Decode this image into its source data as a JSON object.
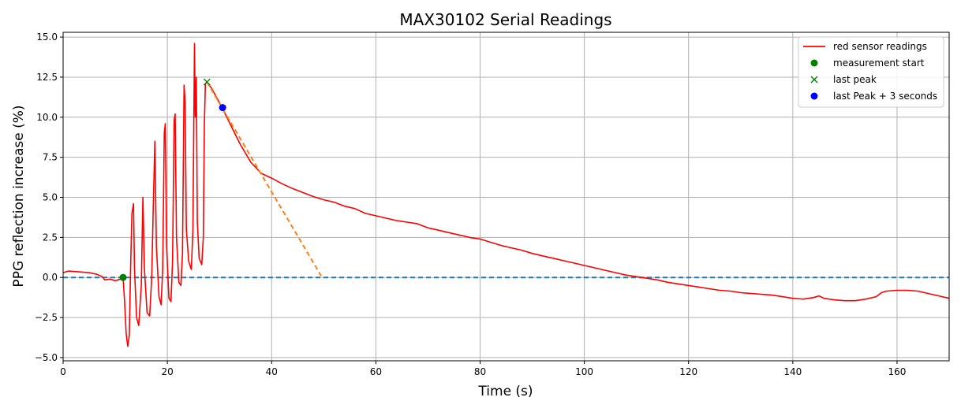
{
  "chart_data": {
    "type": "line",
    "title": "MAX30102 Serial Readings",
    "xlabel": "Time (s)",
    "ylabel": "PPG reflection increase (%)",
    "xlim": [
      0,
      170
    ],
    "ylim": [
      -5.2,
      15.3
    ],
    "xticks": [
      0,
      20,
      40,
      60,
      80,
      100,
      120,
      140,
      160
    ],
    "xtick_labels": [
      "0",
      "20",
      "40",
      "60",
      "80",
      "100",
      "120",
      "140",
      "160"
    ],
    "yticks": [
      -5.0,
      -2.5,
      0.0,
      2.5,
      5.0,
      7.5,
      10.0,
      12.5,
      15.0
    ],
    "ytick_labels": [
      "−5.0",
      "−2.5",
      "0.0",
      "2.5",
      "5.0",
      "7.5",
      "10.0",
      "12.5",
      "15.0"
    ],
    "grid": true,
    "legend_position": "top-right",
    "colors": {
      "red": "#ff0000",
      "green": "#008000",
      "blue": "#0000ff",
      "orange": "#ff7f0e",
      "baseline": "#1f77b4"
    },
    "series": [
      {
        "name": "red sensor readings",
        "style": "line",
        "color": "#ff0000",
        "points": [
          [
            0,
            0.3
          ],
          [
            1,
            0.4
          ],
          [
            3,
            0.35
          ],
          [
            5,
            0.3
          ],
          [
            6.5,
            0.2
          ],
          [
            7.5,
            0.05
          ],
          [
            8,
            -0.15
          ],
          [
            9,
            -0.1
          ],
          [
            10,
            -0.2
          ],
          [
            11,
            -0.1
          ],
          [
            11.5,
            0.0
          ],
          [
            11.8,
            -1.5
          ],
          [
            12.1,
            -3.5
          ],
          [
            12.4,
            -4.3
          ],
          [
            12.7,
            -3.6
          ],
          [
            12.95,
            0.5
          ],
          [
            13.2,
            4.0
          ],
          [
            13.5,
            4.6
          ],
          [
            13.7,
            0.5
          ],
          [
            14.1,
            -2.5
          ],
          [
            14.5,
            -3.0
          ],
          [
            15.0,
            -0.5
          ],
          [
            15.3,
            5.0
          ],
          [
            15.6,
            0.5
          ],
          [
            16.1,
            -2.2
          ],
          [
            16.6,
            -2.4
          ],
          [
            17.0,
            0.0
          ],
          [
            17.3,
            4.5
          ],
          [
            17.6,
            8.5
          ],
          [
            17.9,
            2.0
          ],
          [
            18.4,
            -1.2
          ],
          [
            18.8,
            -1.7
          ],
          [
            19.1,
            0.5
          ],
          [
            19.4,
            9.0
          ],
          [
            19.6,
            9.6
          ],
          [
            19.85,
            2.0
          ],
          [
            20.3,
            -1.3
          ],
          [
            20.7,
            -1.5
          ],
          [
            21.0,
            1.0
          ],
          [
            21.3,
            9.8
          ],
          [
            21.5,
            10.2
          ],
          [
            21.75,
            2.5
          ],
          [
            22.2,
            -0.3
          ],
          [
            22.6,
            -0.5
          ],
          [
            22.9,
            1.5
          ],
          [
            23.2,
            12.0
          ],
          [
            23.4,
            11.0
          ],
          [
            23.65,
            3.0
          ],
          [
            24.1,
            1.0
          ],
          [
            24.6,
            0.5
          ],
          [
            24.9,
            3.0
          ],
          [
            25.2,
            14.6
          ],
          [
            25.35,
            10.0
          ],
          [
            25.55,
            12.5
          ],
          [
            25.75,
            3.5
          ],
          [
            26.1,
            1.2
          ],
          [
            26.6,
            0.8
          ],
          [
            26.9,
            2.5
          ],
          [
            27.1,
            9.5
          ],
          [
            27.3,
            12.1
          ],
          [
            27.6,
            12.2
          ],
          [
            28.5,
            11.8
          ],
          [
            30.5,
            10.6
          ],
          [
            32,
            9.6
          ],
          [
            34,
            8.3
          ],
          [
            36,
            7.2
          ],
          [
            38,
            6.5
          ],
          [
            40,
            6.2
          ],
          [
            42,
            5.85
          ],
          [
            44,
            5.55
          ],
          [
            46,
            5.3
          ],
          [
            48,
            5.05
          ],
          [
            50,
            4.85
          ],
          [
            52,
            4.7
          ],
          [
            54,
            4.45
          ],
          [
            56,
            4.3
          ],
          [
            58,
            4.0
          ],
          [
            60,
            3.85
          ],
          [
            62,
            3.7
          ],
          [
            64,
            3.55
          ],
          [
            66,
            3.45
          ],
          [
            68,
            3.35
          ],
          [
            70,
            3.1
          ],
          [
            72,
            2.95
          ],
          [
            74,
            2.8
          ],
          [
            76,
            2.65
          ],
          [
            78,
            2.5
          ],
          [
            80,
            2.4
          ],
          [
            82,
            2.2
          ],
          [
            84,
            2.0
          ],
          [
            86,
            1.85
          ],
          [
            88,
            1.7
          ],
          [
            90,
            1.5
          ],
          [
            92,
            1.35
          ],
          [
            94,
            1.2
          ],
          [
            96,
            1.05
          ],
          [
            98,
            0.9
          ],
          [
            100,
            0.75
          ],
          [
            102,
            0.6
          ],
          [
            104,
            0.45
          ],
          [
            106,
            0.3
          ],
          [
            108,
            0.15
          ],
          [
            110,
            0.05
          ],
          [
            112,
            -0.05
          ],
          [
            114,
            -0.15
          ],
          [
            116,
            -0.3
          ],
          [
            118,
            -0.4
          ],
          [
            120,
            -0.5
          ],
          [
            122,
            -0.6
          ],
          [
            124,
            -0.7
          ],
          [
            126,
            -0.8
          ],
          [
            128,
            -0.85
          ],
          [
            130,
            -0.95
          ],
          [
            132,
            -1.0
          ],
          [
            134,
            -1.05
          ],
          [
            136,
            -1.1
          ],
          [
            138,
            -1.2
          ],
          [
            140,
            -1.3
          ],
          [
            142,
            -1.35
          ],
          [
            144,
            -1.25
          ],
          [
            145,
            -1.15
          ],
          [
            146,
            -1.3
          ],
          [
            148,
            -1.4
          ],
          [
            150,
            -1.45
          ],
          [
            152,
            -1.45
          ],
          [
            154,
            -1.35
          ],
          [
            156,
            -1.2
          ],
          [
            157,
            -0.95
          ],
          [
            158,
            -0.85
          ],
          [
            160,
            -0.8
          ],
          [
            162,
            -0.8
          ],
          [
            164,
            -0.85
          ],
          [
            166,
            -1.0
          ],
          [
            168,
            -1.15
          ],
          [
            170,
            -1.3
          ]
        ]
      },
      {
        "name": "",
        "style": "dashed",
        "color": "#ff7f0e",
        "points": [
          [
            27.6,
            12.2
          ],
          [
            49.5,
            0.1
          ]
        ]
      },
      {
        "name": "",
        "style": "dashed",
        "color": "#1f77b4",
        "points": [
          [
            0,
            0.0
          ],
          [
            170,
            0.0
          ]
        ]
      },
      {
        "name": "measurement start",
        "style": "dot",
        "color": "#008000",
        "points": [
          [
            11.5,
            0.0
          ]
        ]
      },
      {
        "name": "last peak",
        "style": "x",
        "color": "#008000",
        "points": [
          [
            27.6,
            12.2
          ]
        ]
      },
      {
        "name": "last Peak + 3 seconds",
        "style": "dot",
        "color": "#0000ff",
        "points": [
          [
            30.6,
            10.6
          ]
        ]
      }
    ],
    "legend": [
      "red sensor readings",
      "measurement start",
      "last peak",
      "last Peak + 3 seconds"
    ]
  }
}
